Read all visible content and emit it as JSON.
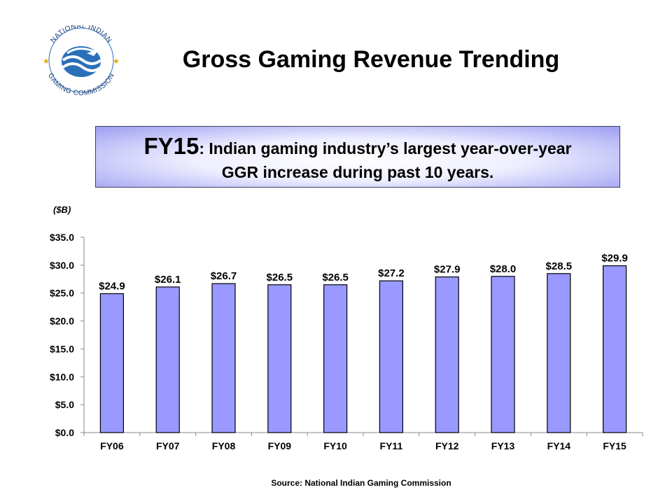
{
  "logo": {
    "text_top": "NATIONAL INDIAN",
    "text_bottom": "GAMING COMMISSION",
    "colors": {
      "text": "#1f3f7a",
      "waves": "#2a6fb8",
      "stars": "#e0a800"
    }
  },
  "title": "Gross Gaming Revenue Trending",
  "callout": {
    "lead": "FY15",
    "line1": ": Indian gaming industry’s largest year-over-year",
    "line2": "GGR increase during past 10 years."
  },
  "unit_label": "($B)",
  "source": "Source: National Indian Gaming Commission",
  "chart_data": {
    "type": "bar",
    "categories": [
      "FY06",
      "FY07",
      "FY08",
      "FY09",
      "FY10",
      "FY11",
      "FY12",
      "FY13",
      "FY14",
      "FY15"
    ],
    "values": [
      24.9,
      26.1,
      26.7,
      26.5,
      26.5,
      27.2,
      27.9,
      28.0,
      28.5,
      29.9
    ],
    "data_labels": [
      "$24.9",
      "$26.1",
      "$26.7",
      "$26.5",
      "$26.5",
      "$27.2",
      "$27.9",
      "$28.0",
      "$28.5",
      "$29.9"
    ],
    "y_ticks": [
      0,
      5,
      10,
      15,
      20,
      25,
      30,
      35
    ],
    "y_tick_labels": [
      "$0.0",
      "$5.0",
      "$10.0",
      "$15.0",
      "$20.0",
      "$25.0",
      "$30.0",
      "$35.0"
    ],
    "ylim": [
      0,
      35
    ],
    "grid": false,
    "legend": "none",
    "colors": {
      "bar": "#9999ff",
      "bar_edge": "#000000"
    }
  }
}
